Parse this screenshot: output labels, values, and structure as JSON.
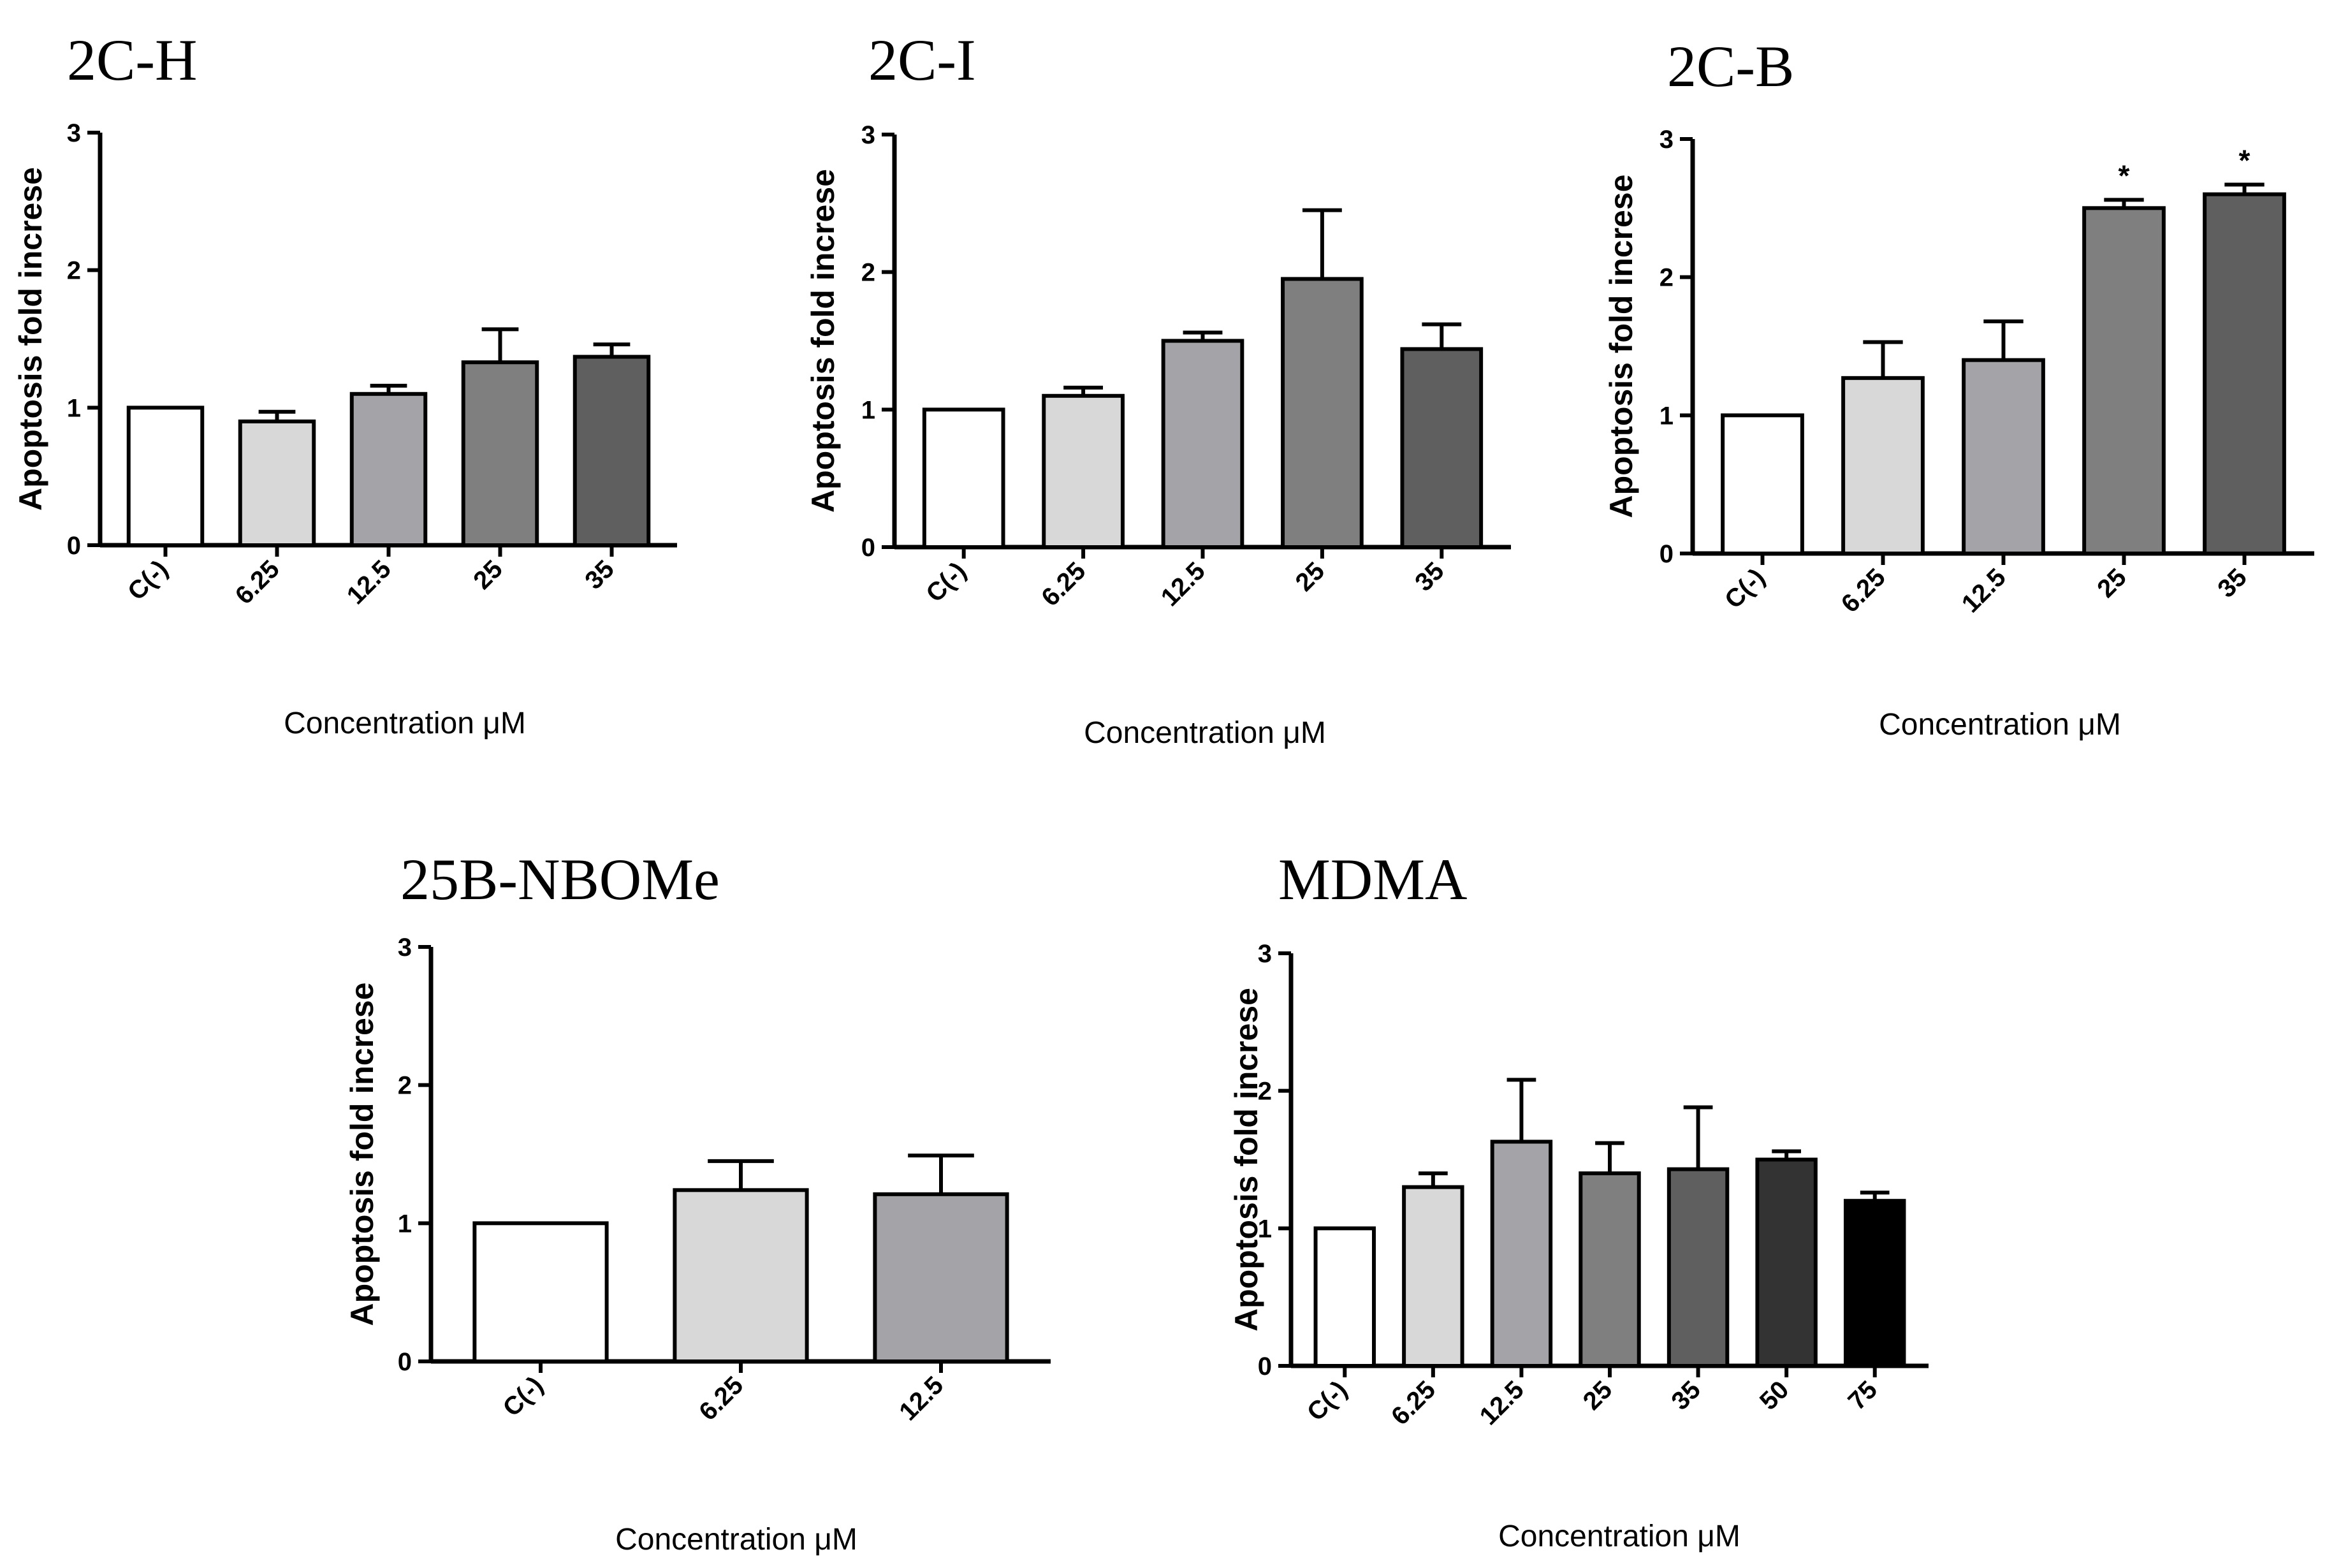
{
  "chart_data": [
    {
      "type": "bar",
      "title": "2C-H",
      "xlabel": "Concentration μM",
      "ylabel": "Apoptosis fold increse",
      "ylim": [
        0,
        3
      ],
      "yticks": [
        "0",
        "1",
        "2",
        "3"
      ],
      "categories": [
        "C(-)",
        "6.25",
        "12.5",
        "25",
        "35"
      ],
      "values": [
        1.0,
        0.9,
        1.1,
        1.33,
        1.37
      ],
      "errors": [
        0,
        0.07,
        0.06,
        0.24,
        0.09
      ],
      "fills": [
        "#ffffff",
        "#d8d8d8",
        "#a3a3a8",
        "#7f7f7f",
        "#5f5f5f"
      ],
      "annotations": [
        "",
        "",
        "",
        "",
        ""
      ]
    },
    {
      "type": "bar",
      "title": "2C-I",
      "xlabel": "Concentration μM",
      "ylabel": "Apoptosis fold increse",
      "ylim": [
        0,
        3
      ],
      "yticks": [
        "0",
        "1",
        "2",
        "3"
      ],
      "categories": [
        "C(-)",
        "6.25",
        "12.5",
        "25",
        "35"
      ],
      "values": [
        1.0,
        1.1,
        1.5,
        1.95,
        1.44
      ],
      "errors": [
        0,
        0.06,
        0.06,
        0.5,
        0.18
      ],
      "fills": [
        "#ffffff",
        "#d8d8d8",
        "#a3a3a8",
        "#7f7f7f",
        "#5f5f5f"
      ],
      "annotations": [
        "",
        "",
        "",
        "",
        ""
      ]
    },
    {
      "type": "bar",
      "title": "2C-B",
      "xlabel": "Concentration μM",
      "ylabel": "Apoptosis fold increse",
      "ylim": [
        0,
        3
      ],
      "yticks": [
        "0",
        "1",
        "2",
        "3"
      ],
      "categories": [
        "C(-)",
        "6.25",
        "12.5",
        "25",
        "35"
      ],
      "values": [
        1.0,
        1.27,
        1.4,
        2.5,
        2.6
      ],
      "errors": [
        0,
        0.26,
        0.28,
        0.06,
        0.07
      ],
      "fills": [
        "#ffffff",
        "#d8d8d8",
        "#a3a3a8",
        "#7f7f7f",
        "#5f5f5f"
      ],
      "annotations": [
        "",
        "",
        "",
        "*",
        "*"
      ]
    },
    {
      "type": "bar",
      "title": "25B-NBOMe",
      "xlabel": "Concentration μM",
      "ylabel": "Apoptosis fold increse",
      "ylim": [
        0,
        3
      ],
      "yticks": [
        "0",
        "1",
        "2",
        "3"
      ],
      "categories": [
        "C(-)",
        "6.25",
        "12.5"
      ],
      "values": [
        1.0,
        1.24,
        1.21
      ],
      "errors": [
        0,
        0.21,
        0.28
      ],
      "fills": [
        "#ffffff",
        "#d8d8d8",
        "#a3a3a8"
      ],
      "annotations": [
        "",
        "",
        ""
      ]
    },
    {
      "type": "bar",
      "title": "MDMA",
      "xlabel": "Concentration μM",
      "ylabel": "Apoptosis fold increse",
      "ylim": [
        0,
        3
      ],
      "yticks": [
        "0",
        "1",
        "2",
        "3"
      ],
      "categories": [
        "C(-)",
        "6.25",
        "12.5",
        "25",
        "35",
        "50",
        "75"
      ],
      "values": [
        1.0,
        1.3,
        1.63,
        1.4,
        1.43,
        1.5,
        1.2
      ],
      "errors": [
        0,
        0.1,
        0.45,
        0.22,
        0.45,
        0.06,
        0.06
      ],
      "fills": [
        "#ffffff",
        "#d8d8d8",
        "#a3a3a8",
        "#7f7f7f",
        "#5f5f5f",
        "#333333",
        "#000000"
      ],
      "annotations": [
        "",
        "",
        "",
        "",
        "",
        "",
        ""
      ]
    }
  ]
}
